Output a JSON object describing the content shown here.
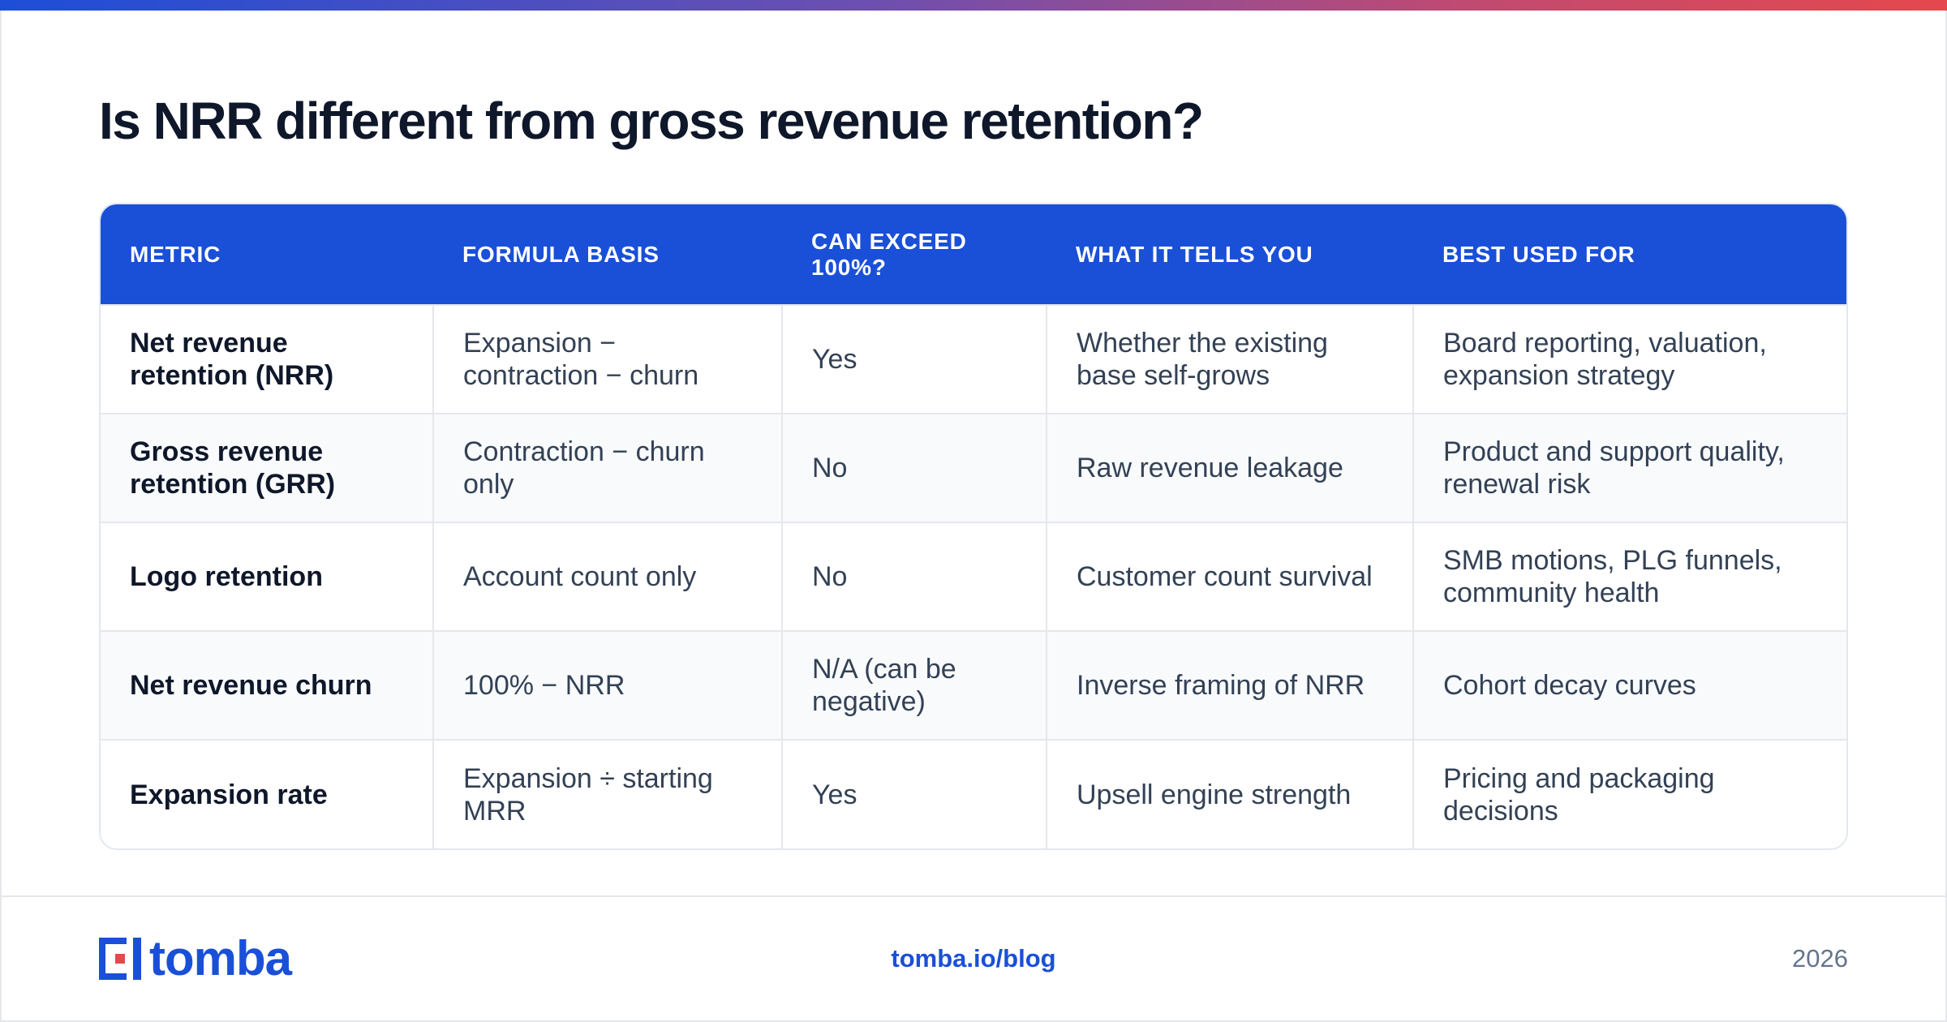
{
  "title": "Is NRR different from gross revenue retention?",
  "table": {
    "headers": [
      "METRIC",
      "FORMULA BASIS",
      "CAN EXCEED 100%?",
      "WHAT IT TELLS YOU",
      "BEST USED FOR"
    ],
    "rows": [
      [
        "Net revenue retention (NRR)",
        "Expansion − contraction − churn",
        "Yes",
        "Whether the existing base self-grows",
        "Board reporting, valuation, expansion strategy"
      ],
      [
        "Gross revenue retention (GRR)",
        "Contraction − churn only",
        "No",
        "Raw revenue leakage",
        "Product and support quality, renewal risk"
      ],
      [
        "Logo retention",
        "Account count only",
        "No",
        "Customer count survival",
        "SMB motions, PLG funnels, community health"
      ],
      [
        "Net revenue churn",
        "100% − NRR",
        "N/A (can be negative)",
        "Inverse framing of NRR",
        "Cohort decay curves"
      ],
      [
        "Expansion rate",
        "Expansion ÷ starting MRR",
        "Yes",
        "Upsell engine strength",
        "Pricing and packaging decisions"
      ]
    ]
  },
  "footer": {
    "logo_text": "tomba",
    "link": "tomba.io/blog",
    "year": "2026"
  },
  "colors": {
    "accent": "#1a4fd8",
    "logo_red": "#e5484d"
  }
}
